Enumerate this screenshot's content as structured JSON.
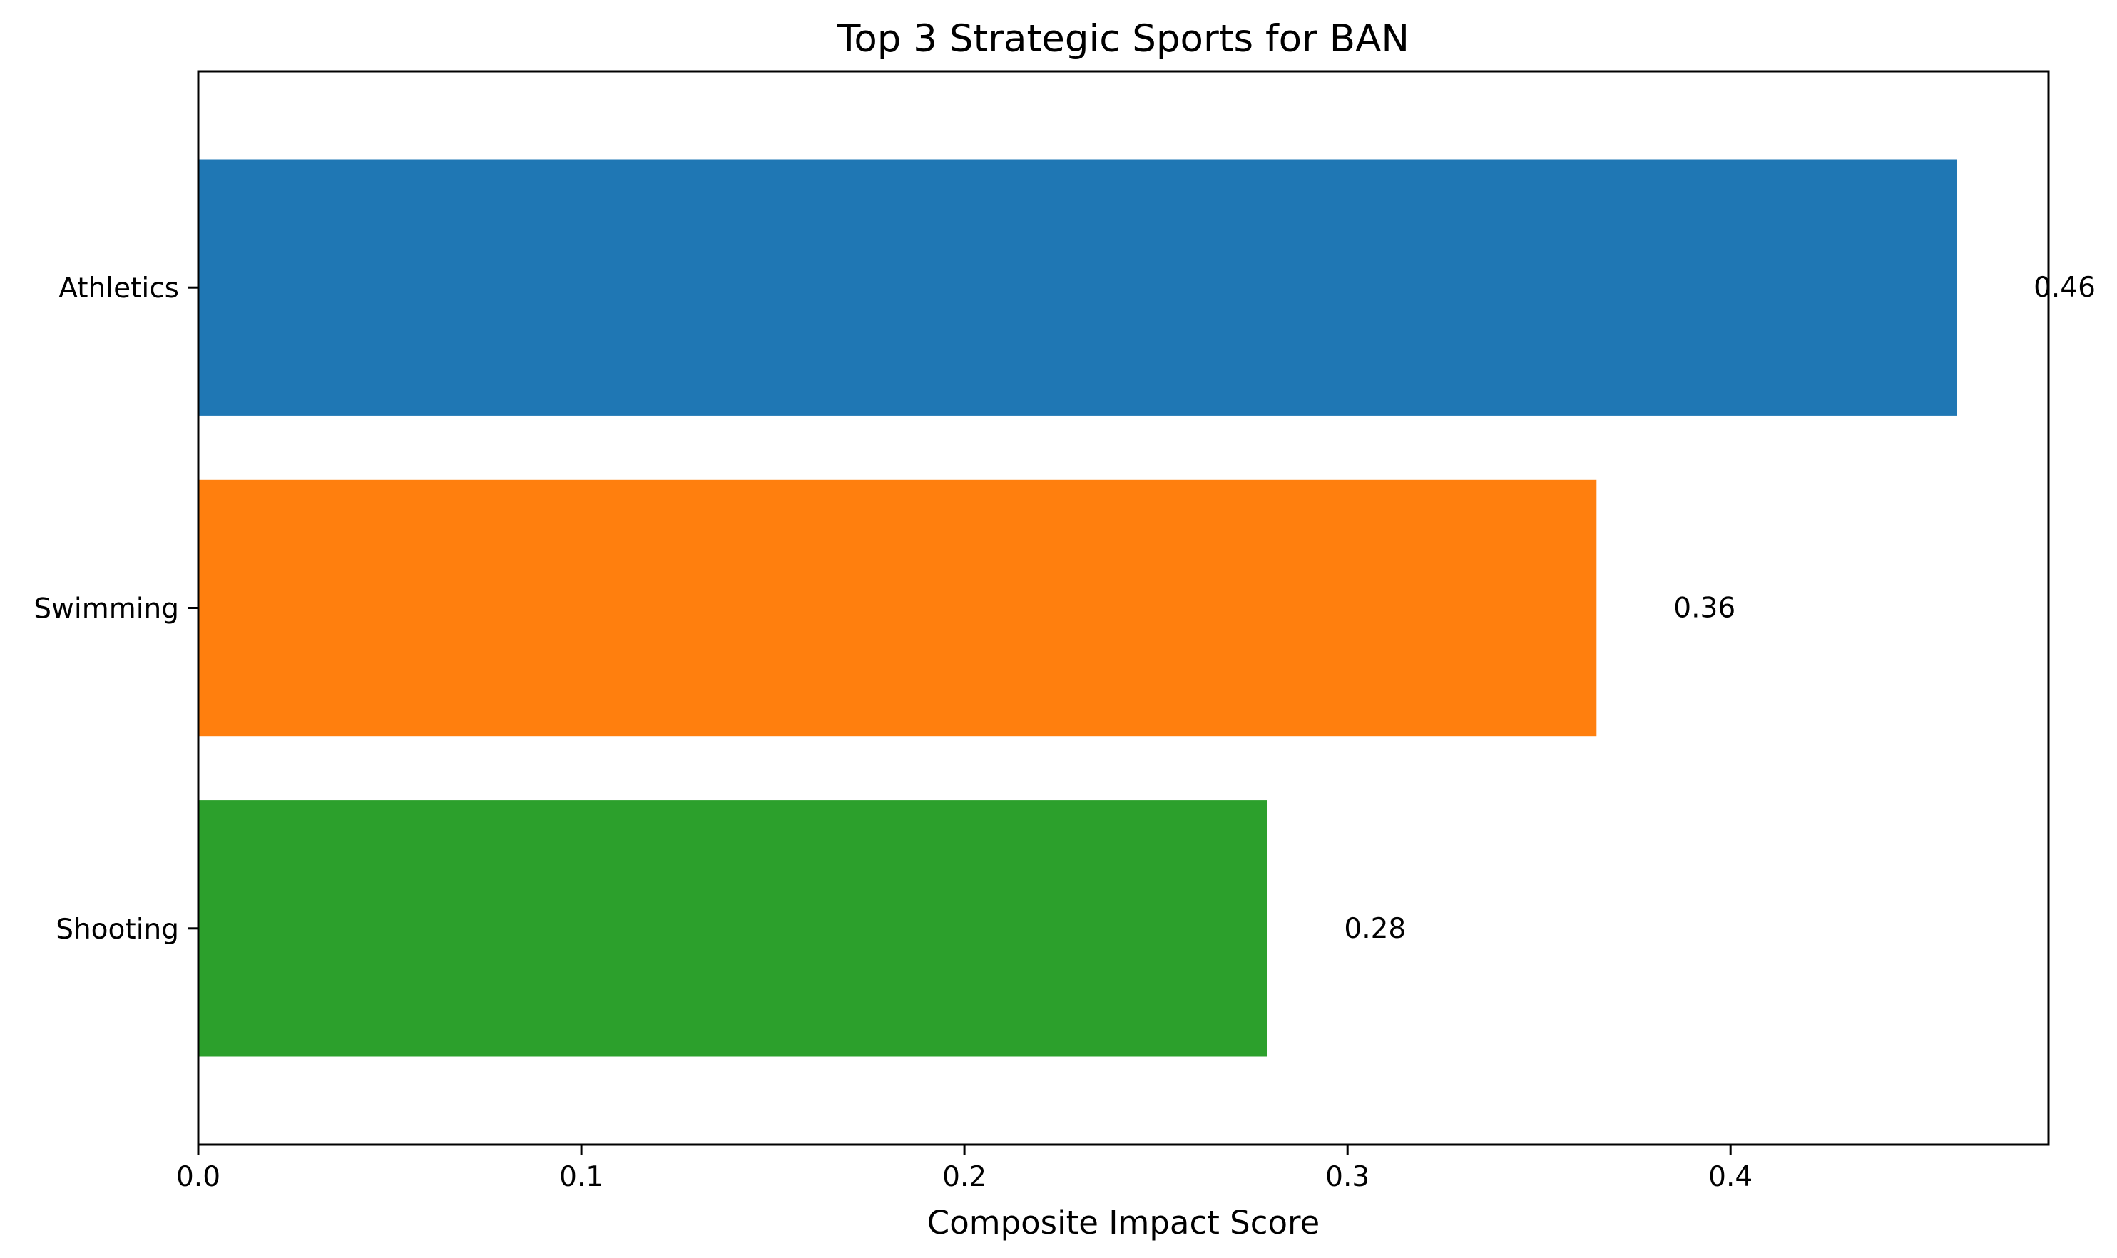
{
  "chart_data": {
    "type": "bar",
    "orientation": "horizontal",
    "title": "Top 3 Strategic Sports for BAN",
    "xlabel": "Composite Impact Score",
    "ylabel": "",
    "categories": [
      "Athletics",
      "Swimming",
      "Shooting"
    ],
    "values": [
      0.459,
      0.365,
      0.279
    ],
    "value_labels": [
      "0.46",
      "0.36",
      "0.28"
    ],
    "colors": [
      "#1f77b4",
      "#ff7f0e",
      "#2ca02c"
    ],
    "xlim": [
      0,
      0.483
    ],
    "xticks": [
      0.0,
      0.1,
      0.2,
      0.3,
      0.4
    ],
    "xtick_labels": [
      "0.0",
      "0.1",
      "0.2",
      "0.3",
      "0.4"
    ],
    "grid": false,
    "legend": "none"
  }
}
